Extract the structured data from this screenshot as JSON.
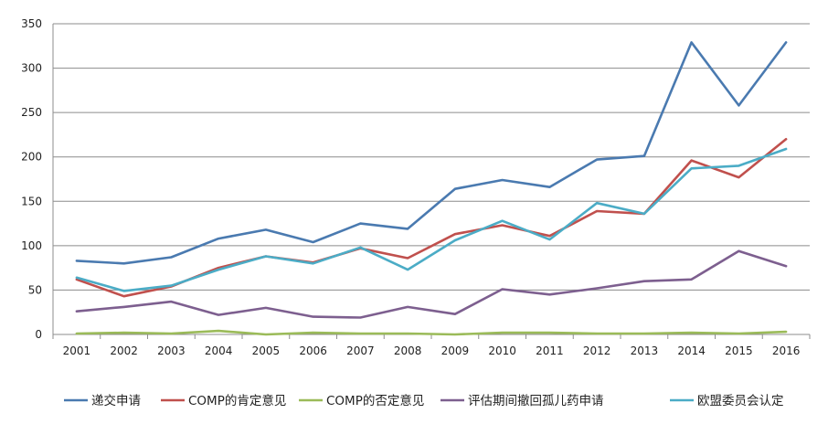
{
  "chart_data": {
    "type": "line",
    "title": "",
    "xlabel": "",
    "ylabel": "",
    "ylim": [
      0,
      350
    ],
    "yticks": [
      0,
      50,
      100,
      150,
      200,
      250,
      300,
      350
    ],
    "grid": true,
    "legend_position": "bottom",
    "categories": [
      "2001",
      "2002",
      "2003",
      "2004",
      "2005",
      "2006",
      "2007",
      "2008",
      "2009",
      "2010",
      "2011",
      "2012",
      "2013",
      "2014",
      "2015",
      "2016"
    ],
    "series": [
      {
        "name": "递交申请",
        "color": "#4a7ab0",
        "values": [
          83,
          80,
          87,
          108,
          118,
          104,
          125,
          119,
          164,
          174,
          166,
          197,
          201,
          329,
          258,
          329
        ]
      },
      {
        "name": "COMP的肯定意见",
        "color": "#c0504d",
        "values": [
          62,
          43,
          54,
          75,
          88,
          81,
          97,
          86,
          113,
          123,
          111,
          139,
          136,
          196,
          177,
          220
        ]
      },
      {
        "name": "COMP的否定意见",
        "color": "#9bbb59",
        "values": [
          1,
          2,
          1,
          4,
          0,
          2,
          1,
          1,
          0,
          2,
          2,
          1,
          1,
          2,
          1,
          3
        ]
      },
      {
        "name": "评估期间撤回孤儿药申请",
        "color": "#7d5f8f",
        "values": [
          26,
          31,
          37,
          22,
          30,
          20,
          19,
          31,
          23,
          51,
          45,
          52,
          60,
          62,
          94,
          77
        ]
      },
      {
        "name": "欧盟委员会认定",
        "color": "#4bacc6",
        "values": [
          64,
          49,
          55,
          73,
          88,
          80,
          98,
          73,
          106,
          128,
          107,
          148,
          136,
          187,
          190,
          209
        ]
      }
    ]
  }
}
